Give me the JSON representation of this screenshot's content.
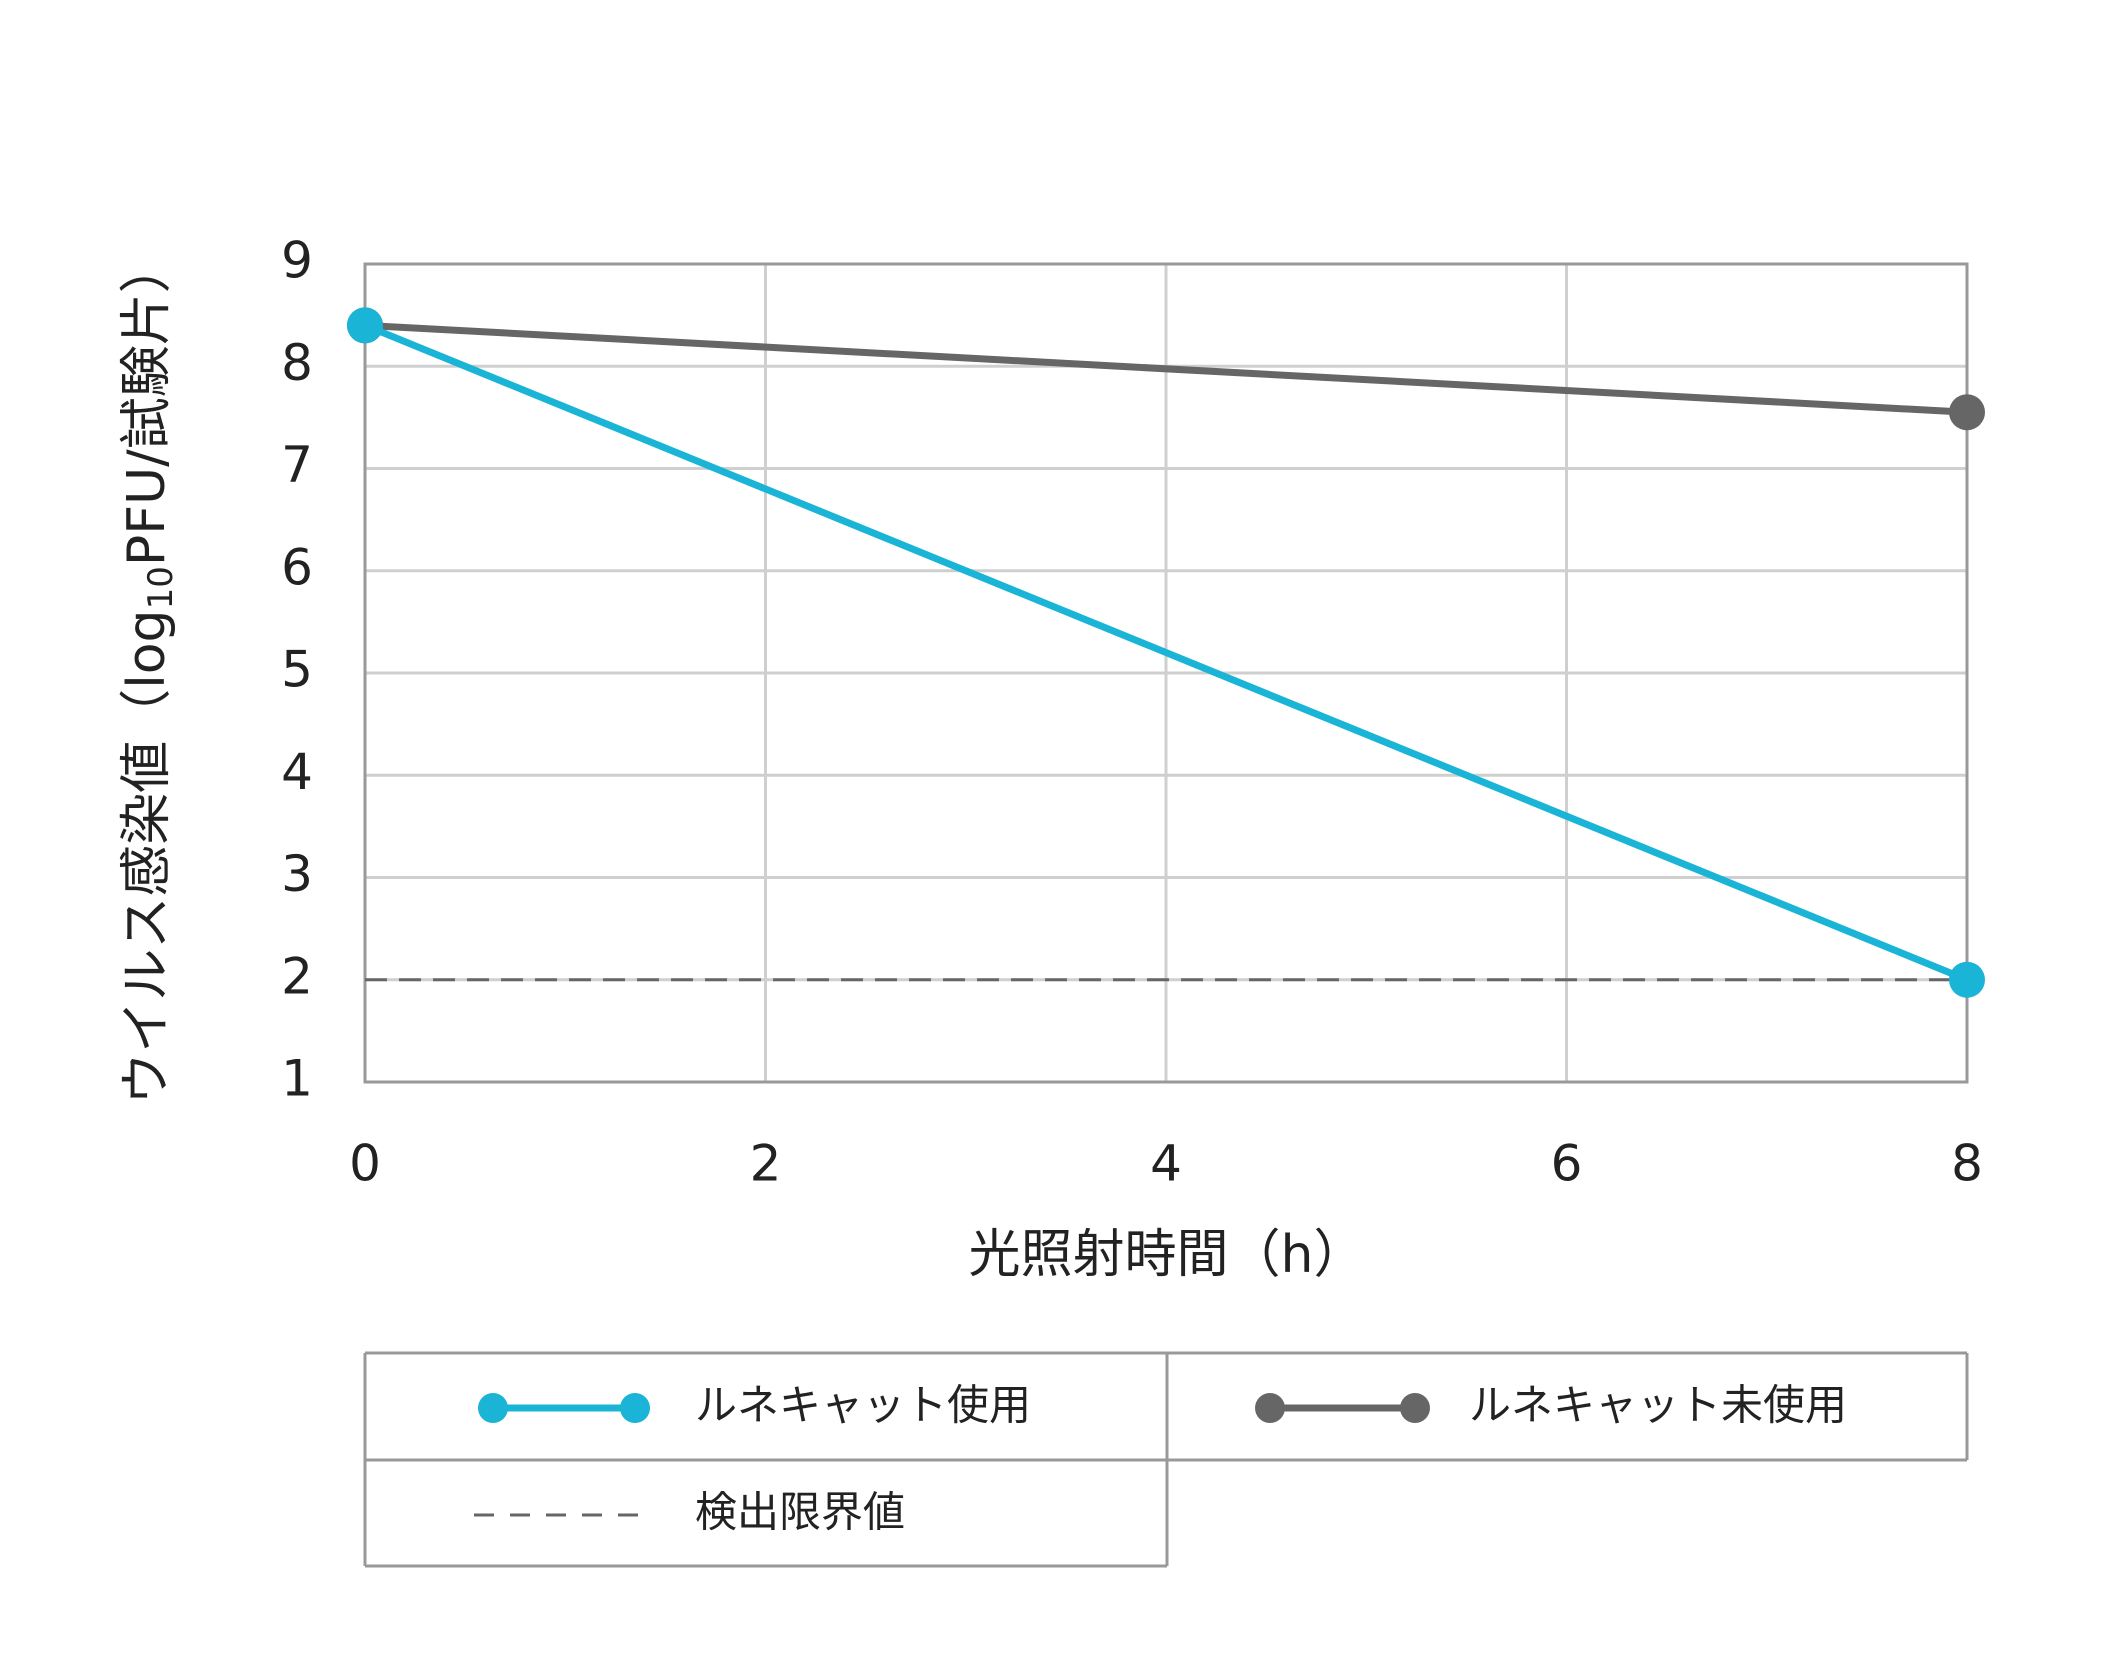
{
  "chart_data": {
    "type": "line",
    "x_label": "光照射時間（h）",
    "y_label": [
      "ウイルス感染値（log",
      "10",
      "PFU/試験片）"
    ],
    "x": [
      0,
      8
    ],
    "series": [
      {
        "name": "ルネキャット使用",
        "color": "#1ab4d6",
        "values": [
          8.4,
          2.0
        ]
      },
      {
        "name": "ルネキャット未使用",
        "color": "#666666",
        "values": [
          8.4,
          7.55
        ]
      }
    ],
    "reference_line": {
      "name": "検出限界値",
      "value": 2,
      "color": "#666666"
    },
    "xlim": [
      0,
      8
    ],
    "xticks": [
      0,
      2,
      4,
      6,
      8
    ],
    "ylim": [
      1,
      9
    ],
    "yticks": [
      1,
      2,
      3,
      4,
      5,
      6,
      7,
      8,
      9
    ],
    "grid": true,
    "legend": "bottom"
  }
}
